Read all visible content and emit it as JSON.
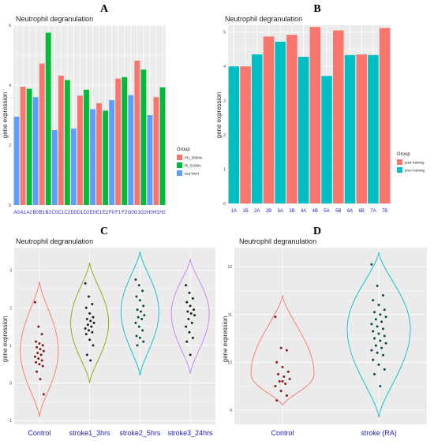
{
  "panels": [
    {
      "letter": "A"
    },
    {
      "letter": "B"
    },
    {
      "letter": "C"
    },
    {
      "letter": "D"
    }
  ],
  "colors": {
    "panel_bg": "#ebebeb",
    "grid": "#ffffff",
    "red": "#f8766d",
    "green": "#00ba38",
    "blue": "#619cff",
    "teal": "#00bfc4",
    "olive": "#7cae00",
    "purple": "#c77cff",
    "dot": "#222222",
    "dot_red": "#8b1a1a",
    "dot_teal": "#0b4a4c",
    "tick_blue": "#2222cc"
  },
  "chart_data": [
    {
      "type": "bar",
      "title": "Neutrophil degranulation",
      "xlabel": "",
      "ylabel": "gene expression",
      "ylim": [
        0,
        6
      ],
      "yticks": [
        0,
        2,
        4,
        6
      ],
      "legend_title": "Group",
      "legend_position": "right",
      "categories": [
        "A0",
        "A1",
        "A2",
        "B0",
        "B1",
        "B2",
        "C0",
        "C1",
        "C2",
        "D0",
        "D1",
        "D2",
        "E0",
        "E1",
        "E2",
        "F0",
        "F1",
        "F2",
        "G0",
        "G1",
        "G2",
        "H0",
        "H1",
        "H2"
      ],
      "series": [
        {
          "name": "PU_3600m",
          "color": "#f8766d",
          "values": [
            null,
            3.95,
            null,
            null,
            4.72,
            null,
            null,
            4.32,
            null,
            null,
            3.65,
            null,
            null,
            3.4,
            null,
            null,
            4.22,
            null,
            null,
            4.82,
            null,
            null,
            3.6,
            null
          ]
        },
        {
          "name": "RI_8100m",
          "color": "#00ba38",
          "values": [
            null,
            null,
            3.88,
            null,
            null,
            5.75,
            null,
            null,
            4.17,
            null,
            null,
            3.85,
            null,
            null,
            3.15,
            null,
            null,
            4.27,
            null,
            null,
            4.52,
            null,
            null,
            3.93
          ]
        },
        {
          "name": "sea level",
          "color": "#619cff",
          "values": [
            2.95,
            null,
            null,
            3.6,
            null,
            null,
            2.5,
            null,
            null,
            2.55,
            null,
            null,
            3.2,
            null,
            null,
            3.5,
            null,
            null,
            3.67,
            null,
            null,
            3.0,
            null,
            null
          ]
        }
      ]
    },
    {
      "type": "bar",
      "title": "Neutrophil degranulation",
      "xlabel": "",
      "ylabel": "gene expression",
      "ylim": [
        0,
        5.2
      ],
      "yticks": [
        0,
        1,
        2,
        3,
        4,
        5
      ],
      "legend_title": "Group",
      "legend_position": "right",
      "categories": [
        "1A",
        "1B",
        "2A",
        "2B",
        "3A",
        "3B",
        "4A",
        "4B",
        "5A",
        "5B",
        "6A",
        "6B",
        "7A",
        "7B"
      ],
      "series": [
        {
          "name": "post training",
          "color": "#f8766d",
          "values": [
            null,
            4.0,
            null,
            4.87,
            null,
            4.92,
            null,
            5.15,
            null,
            5.05,
            null,
            4.35,
            null,
            5.12
          ]
        },
        {
          "name": "prior training",
          "color": "#00bfc4",
          "values": [
            4.0,
            null,
            4.35,
            null,
            4.72,
            null,
            4.28,
            null,
            3.72,
            null,
            4.33,
            null,
            4.33,
            null
          ]
        }
      ]
    },
    {
      "type": "violin",
      "title": "Neutrophil degranulation",
      "xlabel": "",
      "ylabel": "gene expression",
      "ylim": [
        -1.1,
        3.6
      ],
      "yticks": [
        -1,
        0,
        1,
        2,
        3
      ],
      "categories": [
        "Control",
        "stroke1_3hrs",
        "stroke2_5hrs",
        "stroke3_24hrs"
      ],
      "series": [
        {
          "name": "Control",
          "color": "#f8766d",
          "range": [
            -0.9,
            2.7
          ],
          "mode": 0.85,
          "points": [
            2.15,
            1.5,
            1.3,
            1.1,
            1.05,
            1.0,
            0.95,
            0.9,
            0.85,
            0.8,
            0.75,
            0.7,
            0.65,
            0.6,
            0.55,
            0.5,
            0.45,
            0.3,
            0.1,
            -0.3
          ]
        },
        {
          "name": "stroke1_3hrs",
          "color": "#7cae00",
          "range": [
            0.0,
            3.2
          ],
          "mode": 1.6,
          "points": [
            2.65,
            2.3,
            2.1,
            2.0,
            1.85,
            1.75,
            1.7,
            1.65,
            1.6,
            1.55,
            1.5,
            1.45,
            1.4,
            1.35,
            1.3,
            1.15,
            1.0,
            0.75,
            0.6
          ]
        },
        {
          "name": "stroke2_5hrs",
          "color": "#00bfc4",
          "range": [
            0.2,
            3.5
          ],
          "mode": 1.9,
          "points": [
            2.75,
            2.6,
            2.45,
            2.3,
            2.2,
            2.05,
            1.95,
            1.9,
            1.8,
            1.75,
            1.7,
            1.6,
            1.5,
            1.4,
            1.25,
            1.2,
            1.1,
            1.0
          ]
        },
        {
          "name": "stroke3_24hrs",
          "color": "#c77cff",
          "range": [
            0.25,
            3.3
          ],
          "mode": 1.85,
          "points": [
            2.6,
            2.4,
            2.25,
            2.15,
            2.05,
            1.95,
            1.9,
            1.85,
            1.8,
            1.7,
            1.6,
            1.5,
            1.35,
            1.2,
            1.1,
            0.75
          ]
        }
      ]
    },
    {
      "type": "violin",
      "title": "Neutrophil degranulation",
      "xlabel": "",
      "ylabel": "gene expression",
      "ylim": [
        8.7,
        12.4
      ],
      "yticks": [
        9,
        10,
        11,
        12
      ],
      "categories": [
        "Control",
        "stroke (RA)"
      ],
      "series": [
        {
          "name": "Control",
          "color": "#f8766d",
          "range": [
            9.1,
            11.4
          ],
          "mode": 9.75,
          "points": [
            10.95,
            10.3,
            10.25,
            10.0,
            9.9,
            9.8,
            9.75,
            9.7,
            9.65,
            9.6,
            9.55,
            9.5,
            9.4,
            9.3,
            9.2,
            9.6
          ]
        },
        {
          "name": "stroke (RA)",
          "color": "#00bfc4",
          "range": [
            8.85,
            12.3
          ],
          "mode": 10.7,
          "points": [
            12.05,
            11.6,
            11.4,
            11.3,
            11.2,
            11.1,
            11.05,
            11.0,
            10.95,
            10.9,
            10.85,
            10.8,
            10.75,
            10.7,
            10.65,
            10.6,
            10.55,
            10.5,
            10.45,
            10.4,
            10.35,
            10.3,
            10.25,
            10.2,
            10.15,
            10.05,
            9.95,
            9.85,
            9.75,
            9.5
          ]
        }
      ]
    }
  ]
}
